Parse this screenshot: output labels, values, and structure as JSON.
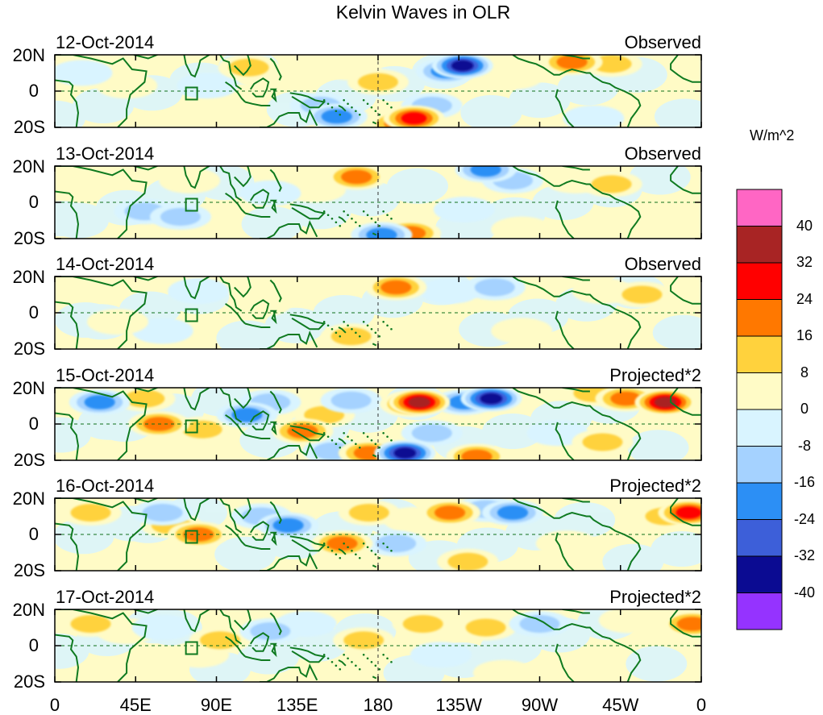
{
  "title": "Kelvin Waves in OLR",
  "colorbar": {
    "unit_label": "W/m^2",
    "tick_labels": [
      "40",
      "32",
      "24",
      "16",
      "8",
      "0",
      "-8",
      "-16",
      "-24",
      "-32",
      "-40"
    ],
    "colors": [
      "#ff66c4",
      "#a82424",
      "#ff0000",
      "#ff7800",
      "#ffd23d",
      "#fffbc6",
      "#d9f4ff",
      "#a5d2ff",
      "#2c8ff5",
      "#3d5fd9",
      "#0b0b92",
      "#9533ff"
    ]
  },
  "lat_labels": [
    "20N",
    "0",
    "20S"
  ],
  "lon_labels": [
    "0",
    "45E",
    "90E",
    "135E",
    "180",
    "135W",
    "90W",
    "45W",
    "0"
  ],
  "panels": [
    {
      "date": "12-Oct-2014",
      "kind": "Observed",
      "features": [
        {
          "lon": 180,
          "lat": 5,
          "value": 16
        },
        {
          "lon": 200,
          "lat": -15,
          "value": 32
        },
        {
          "lon": 192,
          "lat": -18,
          "value": 24
        },
        {
          "lon": 148,
          "lat": -8,
          "value": -16
        },
        {
          "lon": 157,
          "lat": -14,
          "value": -24
        },
        {
          "lon": 227,
          "lat": 14,
          "value": -40
        },
        {
          "lon": 218,
          "lat": 11,
          "value": -24
        },
        {
          "lon": 210,
          "lat": -8,
          "value": -16
        },
        {
          "lon": 108,
          "lat": 13,
          "value": 16
        },
        {
          "lon": 118,
          "lat": 8,
          "value": 8
        },
        {
          "lon": 85,
          "lat": 3,
          "value": -8
        },
        {
          "lon": 40,
          "lat": 3,
          "value": 8
        },
        {
          "lon": 288,
          "lat": 16,
          "value": 24
        },
        {
          "lon": 310,
          "lat": 15,
          "value": 16
        },
        {
          "lon": 255,
          "lat": 8,
          "value": 8
        },
        {
          "lon": 300,
          "lat": -15,
          "value": -8
        },
        {
          "lon": 15,
          "lat": 10,
          "value": -8
        },
        {
          "lon": 165,
          "lat": 13,
          "value": 8
        }
      ]
    },
    {
      "date": "13-Oct-2014",
      "kind": "Observed",
      "features": [
        {
          "lon": 168,
          "lat": 14,
          "value": 24
        },
        {
          "lon": 145,
          "lat": 7,
          "value": 8
        },
        {
          "lon": 198,
          "lat": -17,
          "value": 24
        },
        {
          "lon": 182,
          "lat": -18,
          "value": -24
        },
        {
          "lon": 240,
          "lat": 18,
          "value": -24
        },
        {
          "lon": 255,
          "lat": 12,
          "value": -16
        },
        {
          "lon": 310,
          "lat": 10,
          "value": 16
        },
        {
          "lon": 290,
          "lat": 12,
          "value": 8
        },
        {
          "lon": 228,
          "lat": -4,
          "value": -8
        },
        {
          "lon": 50,
          "lat": -5,
          "value": -16
        },
        {
          "lon": 70,
          "lat": -8,
          "value": -16
        },
        {
          "lon": 75,
          "lat": 12,
          "value": 8
        },
        {
          "lon": 120,
          "lat": 5,
          "value": -8
        },
        {
          "lon": 260,
          "lat": -15,
          "value": 8
        }
      ]
    },
    {
      "date": "14-Oct-2014",
      "kind": "Observed",
      "features": [
        {
          "lon": 190,
          "lat": 14,
          "value": 24
        },
        {
          "lon": 165,
          "lat": -13,
          "value": 16
        },
        {
          "lon": 205,
          "lat": -12,
          "value": 8
        },
        {
          "lon": 245,
          "lat": 14,
          "value": -16
        },
        {
          "lon": 220,
          "lat": 12,
          "value": -8
        },
        {
          "lon": 327,
          "lat": 10,
          "value": 16
        },
        {
          "lon": 305,
          "lat": 12,
          "value": 8
        },
        {
          "lon": 80,
          "lat": 12,
          "value": -8
        },
        {
          "lon": 60,
          "lat": -10,
          "value": -8
        },
        {
          "lon": 115,
          "lat": 5,
          "value": 8
        },
        {
          "lon": 35,
          "lat": -5,
          "value": 8
        },
        {
          "lon": 260,
          "lat": -10,
          "value": 8
        }
      ]
    },
    {
      "date": "15-Oct-2014",
      "kind": "Projected*2",
      "features": [
        {
          "lon": 203,
          "lat": 12,
          "value": 40
        },
        {
          "lon": 198,
          "lat": 11,
          "value": 24
        },
        {
          "lon": 195,
          "lat": -16,
          "value": -40
        },
        {
          "lon": 175,
          "lat": -16,
          "value": 24
        },
        {
          "lon": 235,
          "lat": -18,
          "value": 24
        },
        {
          "lon": 243,
          "lat": 14,
          "value": -40
        },
        {
          "lon": 228,
          "lat": 12,
          "value": -24
        },
        {
          "lon": 340,
          "lat": 12,
          "value": 40
        },
        {
          "lon": 318,
          "lat": 14,
          "value": 24
        },
        {
          "lon": 300,
          "lat": 17,
          "value": 16
        },
        {
          "lon": 58,
          "lat": 0,
          "value": 24
        },
        {
          "lon": 82,
          "lat": -3,
          "value": 16
        },
        {
          "lon": 138,
          "lat": -4,
          "value": 24
        },
        {
          "lon": 150,
          "lat": 5,
          "value": 16
        },
        {
          "lon": 107,
          "lat": 5,
          "value": -24
        },
        {
          "lon": 120,
          "lat": 12,
          "value": -16
        },
        {
          "lon": 25,
          "lat": 12,
          "value": -24
        },
        {
          "lon": 50,
          "lat": 14,
          "value": 16
        },
        {
          "lon": 155,
          "lat": -15,
          "value": -16
        },
        {
          "lon": 210,
          "lat": -5,
          "value": -16
        },
        {
          "lon": 165,
          "lat": 13,
          "value": -16
        },
        {
          "lon": 280,
          "lat": -5,
          "value": -8
        },
        {
          "lon": 305,
          "lat": -10,
          "value": 16
        }
      ]
    },
    {
      "date": "16-Oct-2014",
      "kind": "Projected*2",
      "features": [
        {
          "lon": 220,
          "lat": 12,
          "value": 24
        },
        {
          "lon": 160,
          "lat": -5,
          "value": 24
        },
        {
          "lon": 175,
          "lat": 12,
          "value": 16
        },
        {
          "lon": 80,
          "lat": 0,
          "value": 24
        },
        {
          "lon": 65,
          "lat": 5,
          "value": 16
        },
        {
          "lon": 20,
          "lat": 12,
          "value": 16
        },
        {
          "lon": 255,
          "lat": 12,
          "value": -24
        },
        {
          "lon": 240,
          "lat": 14,
          "value": -16
        },
        {
          "lon": 353,
          "lat": 12,
          "value": 32
        },
        {
          "lon": 340,
          "lat": 10,
          "value": 16
        },
        {
          "lon": 130,
          "lat": 5,
          "value": -24
        },
        {
          "lon": 115,
          "lat": 10,
          "value": -16
        },
        {
          "lon": 60,
          "lat": 12,
          "value": -16
        },
        {
          "lon": 190,
          "lat": -5,
          "value": -16
        },
        {
          "lon": 230,
          "lat": -15,
          "value": 16
        },
        {
          "lon": 200,
          "lat": 8,
          "value": 8
        },
        {
          "lon": 285,
          "lat": -5,
          "value": 8
        }
      ]
    },
    {
      "date": "17-Oct-2014",
      "kind": "Projected*2",
      "features": [
        {
          "lon": 240,
          "lat": 10,
          "value": 16
        },
        {
          "lon": 205,
          "lat": 12,
          "value": 16
        },
        {
          "lon": 172,
          "lat": 3,
          "value": 16
        },
        {
          "lon": 92,
          "lat": 3,
          "value": 16
        },
        {
          "lon": 80,
          "lat": -5,
          "value": 8
        },
        {
          "lon": 20,
          "lat": 12,
          "value": 16
        },
        {
          "lon": 40,
          "lat": 8,
          "value": 8
        },
        {
          "lon": 270,
          "lat": 12,
          "value": -16
        },
        {
          "lon": 120,
          "lat": 8,
          "value": -16
        },
        {
          "lon": 140,
          "lat": 12,
          "value": -8
        },
        {
          "lon": 60,
          "lat": 10,
          "value": -8
        },
        {
          "lon": 215,
          "lat": -5,
          "value": -8
        },
        {
          "lon": 355,
          "lat": 12,
          "value": 24
        },
        {
          "lon": 320,
          "lat": 14,
          "value": 8
        },
        {
          "lon": 250,
          "lat": -15,
          "value": 8
        }
      ]
    }
  ]
}
